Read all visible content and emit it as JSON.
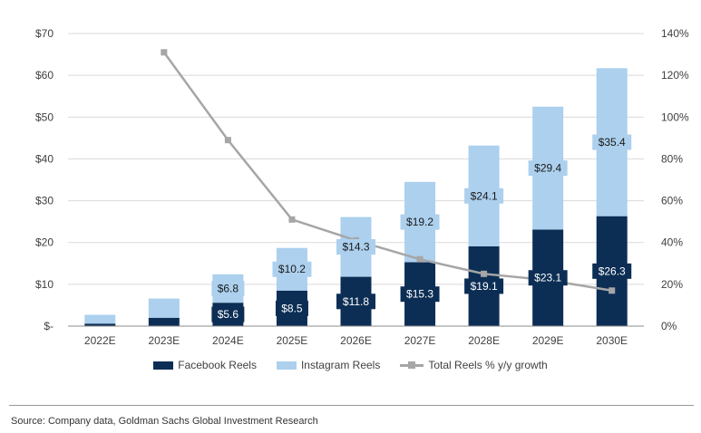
{
  "chart_data": {
    "type": "bar",
    "stacked": true,
    "categories": [
      "2022E",
      "2023E",
      "2024E",
      "2025E",
      "2026E",
      "2027E",
      "2028E",
      "2029E",
      "2030E"
    ],
    "series": [
      {
        "name": "Facebook Reels",
        "type": "bar",
        "axis": "left",
        "color": "#0c2e55",
        "values": [
          0.6,
          2.0,
          5.6,
          8.5,
          11.8,
          15.3,
          19.1,
          23.1,
          26.3
        ],
        "labels": [
          "",
          "",
          "$5.6",
          "$8.5",
          "$11.8",
          "$15.3",
          "$19.1",
          "$23.1",
          "$26.3"
        ]
      },
      {
        "name": "Instagram Reels",
        "type": "bar",
        "axis": "left",
        "color": "#acd0ee",
        "values": [
          2.1,
          4.6,
          6.8,
          10.2,
          14.3,
          19.2,
          24.1,
          29.4,
          35.4
        ],
        "labels": [
          "",
          "",
          "$6.8",
          "$10.2",
          "$14.3",
          "$19.2",
          "$24.1",
          "$29.4",
          "$35.4"
        ]
      },
      {
        "name": "Total Reels % y/y growth",
        "type": "line",
        "axis": "right",
        "color": "#a6a6a6",
        "values": [
          null,
          131,
          89,
          51,
          41,
          32,
          25,
          22,
          17
        ]
      }
    ],
    "yleft": {
      "min": 0,
      "max": 70,
      "step": 10,
      "ticks": [
        "$-",
        "$10",
        "$20",
        "$30",
        "$40",
        "$50",
        "$60",
        "$70"
      ]
    },
    "yright": {
      "min": 0,
      "max": 140,
      "step": 20,
      "ticks": [
        "0%",
        "20%",
        "40%",
        "60%",
        "80%",
        "100%",
        "120%",
        "140%"
      ]
    },
    "grid": true,
    "legend_position": "bottom"
  },
  "source": "Source: Company data, Goldman Sachs Global Investment Research"
}
